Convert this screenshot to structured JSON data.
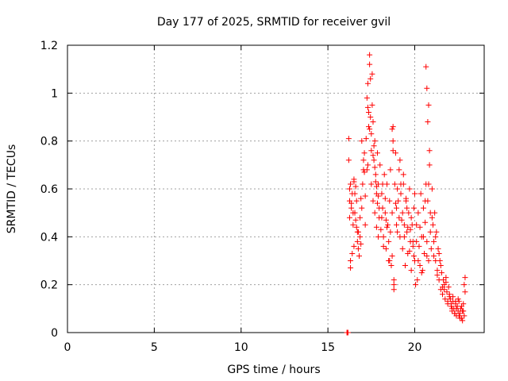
{
  "chart_data": {
    "type": "scatter",
    "title": "Day 177 of 2025, SRMTID for receiver gvil",
    "xlabel": "GPS time / hours",
    "ylabel": "SRMTID / TECUs",
    "xlim": [
      0,
      24
    ],
    "ylim": [
      0,
      1.2
    ],
    "x_ticks": [
      0,
      5,
      10,
      15,
      20
    ],
    "x_tick_labels": [
      "0",
      "5",
      "10",
      "15",
      "20"
    ],
    "y_ticks": [
      0,
      0.2,
      0.4,
      0.6,
      0.8,
      1.0,
      1.2
    ],
    "y_tick_labels": [
      "0",
      "0.2",
      "0.4",
      "0.6",
      "0.8",
      "1",
      "1.2"
    ],
    "grid": true,
    "marker": "plus",
    "color": "#ff0000",
    "series": [
      {
        "name": "SRMTID",
        "x": [
          16.1,
          16.1,
          16.15,
          16.15,
          16.2,
          16.2,
          16.25,
          16.25,
          16.3,
          16.3,
          16.35,
          16.4,
          16.4,
          16.45,
          16.5,
          16.5,
          16.55,
          16.6,
          16.6,
          16.65,
          16.7,
          16.75,
          16.8,
          16.85,
          16.9,
          16.95,
          17.0,
          17.05,
          17.1,
          17.15,
          16.25,
          16.35,
          16.45,
          16.55,
          16.65,
          16.75,
          16.85,
          16.95,
          17.05,
          17.15,
          16.3,
          16.5,
          16.7,
          16.9,
          17.1,
          17.2,
          17.25,
          17.3,
          17.3,
          17.35,
          17.4,
          17.4,
          17.45,
          17.5,
          17.5,
          17.55,
          17.6,
          17.6,
          17.65,
          17.7,
          17.7,
          17.75,
          17.8,
          17.8,
          17.85,
          17.9,
          17.9,
          17.95,
          18.0,
          17.25,
          17.35,
          17.45,
          17.55,
          17.65,
          17.75,
          17.85,
          17.95,
          17.3,
          17.5,
          17.7,
          17.9,
          17.4,
          17.6,
          17.8,
          18.05,
          18.1,
          18.15,
          18.2,
          18.25,
          18.3,
          18.35,
          18.4,
          18.45,
          18.5,
          18.55,
          18.6,
          18.65,
          18.7,
          18.75,
          18.8,
          18.85,
          18.9,
          18.95,
          19.0,
          18.1,
          18.2,
          18.3,
          18.4,
          18.5,
          18.6,
          18.7,
          18.8,
          18.9,
          19.0,
          18.15,
          18.35,
          18.55,
          18.75,
          18.95,
          18.7,
          18.75,
          18.8,
          19.05,
          19.1,
          19.15,
          19.2,
          19.25,
          19.3,
          19.35,
          19.4,
          19.45,
          19.5,
          19.55,
          19.6,
          19.65,
          19.7,
          19.75,
          19.8,
          19.85,
          19.9,
          19.95,
          20.0,
          19.1,
          19.2,
          19.3,
          19.4,
          19.5,
          19.6,
          19.7,
          19.8,
          19.9,
          20.0,
          19.15,
          19.35,
          19.55,
          19.75,
          19.95,
          20.05,
          20.1,
          20.15,
          20.2,
          20.25,
          20.3,
          20.35,
          20.4,
          20.45,
          20.5,
          20.55,
          20.6,
          20.65,
          20.7,
          20.75,
          20.8,
          20.85,
          20.9,
          20.95,
          21.0,
          20.1,
          20.2,
          20.3,
          20.4,
          20.5,
          20.6,
          20.7,
          20.8,
          20.9,
          21.0,
          20.65,
          20.7,
          20.75,
          20.8,
          20.85,
          21.05,
          21.1,
          21.15,
          21.2,
          21.25,
          21.3,
          21.35,
          21.4,
          21.45,
          21.5,
          21.55,
          21.6,
          21.65,
          21.7,
          21.75,
          21.8,
          21.85,
          21.9,
          21.95,
          22.0,
          21.1,
          21.2,
          21.3,
          21.4,
          21.5,
          21.6,
          21.7,
          21.8,
          21.9,
          22.0,
          22.05,
          22.1,
          22.15,
          22.2,
          22.25,
          22.3,
          22.35,
          22.4,
          22.45,
          22.5,
          22.55,
          22.6,
          22.65,
          22.7,
          22.75,
          22.8,
          22.85,
          22.1,
          22.2,
          22.3,
          22.4,
          22.5,
          22.6,
          22.7,
          22.8,
          22.15,
          22.35,
          22.55,
          22.75,
          22.85,
          22.9,
          22.9
        ],
        "y": [
          0.0,
          0.0,
          0.0,
          0.0,
          0.72,
          0.81,
          0.55,
          0.48,
          0.62,
          0.27,
          0.52,
          0.58,
          0.33,
          0.45,
          0.64,
          0.36,
          0.5,
          0.61,
          0.47,
          0.55,
          0.38,
          0.42,
          0.32,
          0.48,
          0.56,
          0.8,
          0.62,
          0.72,
          0.67,
          0.45,
          0.6,
          0.54,
          0.5,
          0.58,
          0.44,
          0.35,
          0.4,
          0.52,
          0.68,
          0.57,
          0.3,
          0.63,
          0.42,
          0.37,
          0.75,
          0.81,
          0.98,
          1.04,
          0.7,
          0.92,
          1.16,
          0.85,
          1.06,
          0.76,
          0.62,
          0.95,
          0.88,
          0.55,
          0.72,
          0.8,
          0.5,
          0.66,
          0.58,
          0.44,
          0.75,
          0.62,
          0.4,
          0.52,
          0.7,
          0.68,
          0.86,
          0.9,
          1.08,
          0.78,
          0.63,
          0.54,
          0.48,
          0.94,
          0.83,
          0.69,
          0.57,
          1.12,
          0.74,
          0.61,
          0.43,
          0.58,
          0.52,
          0.4,
          0.66,
          0.5,
          0.35,
          0.62,
          0.45,
          0.3,
          0.55,
          0.42,
          0.28,
          0.5,
          0.86,
          0.18,
          0.62,
          0.75,
          0.45,
          0.6,
          0.48,
          0.36,
          0.56,
          0.44,
          0.38,
          0.68,
          0.32,
          0.22,
          0.54,
          0.42,
          0.62,
          0.47,
          0.3,
          0.76,
          0.52,
          0.85,
          0.8,
          0.2,
          0.55,
          0.68,
          0.4,
          0.58,
          0.47,
          0.35,
          0.62,
          0.45,
          0.28,
          0.55,
          0.42,
          0.33,
          0.5,
          0.6,
          0.38,
          0.26,
          0.45,
          0.36,
          0.52,
          0.3,
          0.48,
          0.62,
          0.5,
          0.4,
          0.56,
          0.44,
          0.34,
          0.48,
          0.38,
          0.58,
          0.72,
          0.66,
          0.52,
          0.43,
          0.32,
          0.2,
          0.45,
          0.22,
          0.5,
          0.36,
          0.28,
          0.58,
          0.4,
          0.26,
          0.52,
          0.33,
          0.46,
          0.62,
          0.38,
          0.55,
          0.3,
          0.7,
          0.42,
          0.35,
          0.48,
          0.38,
          0.3,
          0.44,
          0.25,
          0.4,
          0.55,
          0.32,
          0.62,
          0.5,
          0.6,
          1.11,
          1.02,
          0.88,
          0.95,
          0.76,
          0.45,
          0.38,
          0.5,
          0.3,
          0.42,
          0.26,
          0.35,
          0.22,
          0.3,
          0.18,
          0.25,
          0.16,
          0.22,
          0.2,
          0.14,
          0.21,
          0.17,
          0.13,
          0.19,
          0.15,
          0.32,
          0.4,
          0.24,
          0.33,
          0.28,
          0.19,
          0.18,
          0.23,
          0.12,
          0.16,
          0.14,
          0.11,
          0.09,
          0.13,
          0.1,
          0.08,
          0.12,
          0.07,
          0.11,
          0.09,
          0.13,
          0.08,
          0.1,
          0.06,
          0.09,
          0.12,
          0.07,
          0.12,
          0.15,
          0.08,
          0.1,
          0.14,
          0.06,
          0.11,
          0.09,
          0.1,
          0.13,
          0.07,
          0.05,
          0.2,
          0.23,
          0.17
        ]
      }
    ]
  }
}
